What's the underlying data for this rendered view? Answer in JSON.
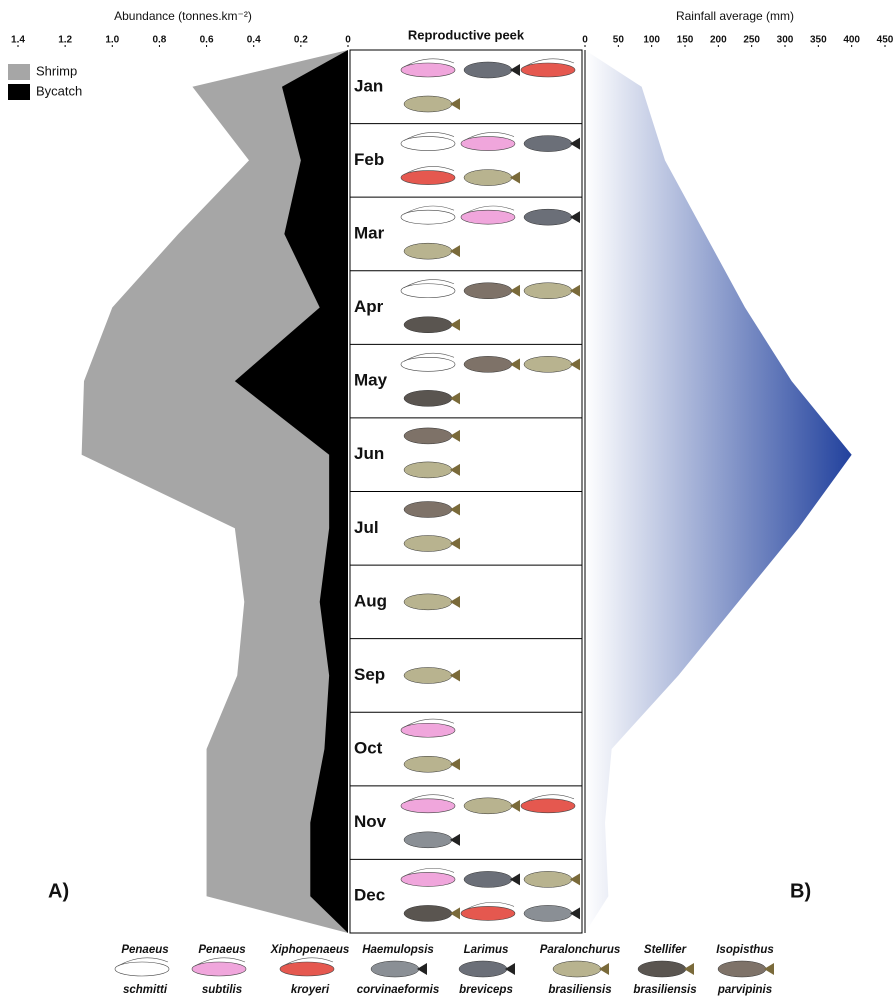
{
  "chart_data": [
    {
      "type": "area",
      "orientation": "vertical",
      "panel": "A)",
      "x_label": "Abundance (tonnes.km⁻²)",
      "categories": [
        "Jan",
        "Feb",
        "Mar",
        "Apr",
        "May",
        "Jun",
        "Jul",
        "Aug",
        "Sep",
        "Oct",
        "Nov",
        "Dec"
      ],
      "xlim": [
        1.4,
        0
      ],
      "xticks": [
        1.4,
        1.2,
        {
          "value": 1,
          "label": "1.0"
        },
        0.8,
        0.6,
        0.4,
        0.2,
        0
      ],
      "legend": "top-left",
      "series": [
        {
          "name": "Shrimp",
          "color": "#a6a6a6",
          "values": [
            0.66,
            0.42,
            0.72,
            1.0,
            1.12,
            1.13,
            0.48,
            0.44,
            0.47,
            0.6,
            0.6,
            0.6
          ]
        },
        {
          "name": "Bycatch",
          "color": "#000000",
          "values": [
            0.28,
            0.2,
            0.27,
            0.12,
            0.48,
            0.08,
            0.08,
            0.12,
            0.08,
            0.1,
            0.16,
            0.16
          ]
        }
      ]
    },
    {
      "type": "area",
      "orientation": "vertical",
      "panel": "B)",
      "x_label": "Rainfall average (mm)",
      "categories": [
        "Jan",
        "Feb",
        "Mar",
        "Apr",
        "May",
        "Jun",
        "Jul",
        "Aug",
        "Sep",
        "Oct",
        "Nov",
        "Dec"
      ],
      "xlim": [
        0,
        450
      ],
      "xticks": [
        0,
        50,
        100,
        150,
        200,
        250,
        300,
        350,
        400,
        450
      ],
      "color": "#1f3f9c",
      "values": [
        85,
        120,
        180,
        240,
        310,
        400,
        320,
        230,
        140,
        40,
        30,
        35
      ]
    }
  ],
  "center": {
    "title": "Reproductive peek"
  },
  "species": [
    {
      "genus": "Penaeus",
      "epithet": "schmitti"
    },
    {
      "genus": "Penaeus",
      "epithet": "subtilis"
    },
    {
      "genus": "Xiphopenaeus",
      "epithet": "kroyeri"
    },
    {
      "genus": "Haemulopsis",
      "epithet": "corvinaeformis"
    },
    {
      "genus": "Larimus",
      "epithet": "breviceps"
    },
    {
      "genus": "Paralonchurus",
      "epithet": "brasiliensis"
    },
    {
      "genus": "Stellifer",
      "epithet": "brasiliensis"
    },
    {
      "genus": "Isopisthus",
      "epithet": "parvipinis"
    }
  ]
}
